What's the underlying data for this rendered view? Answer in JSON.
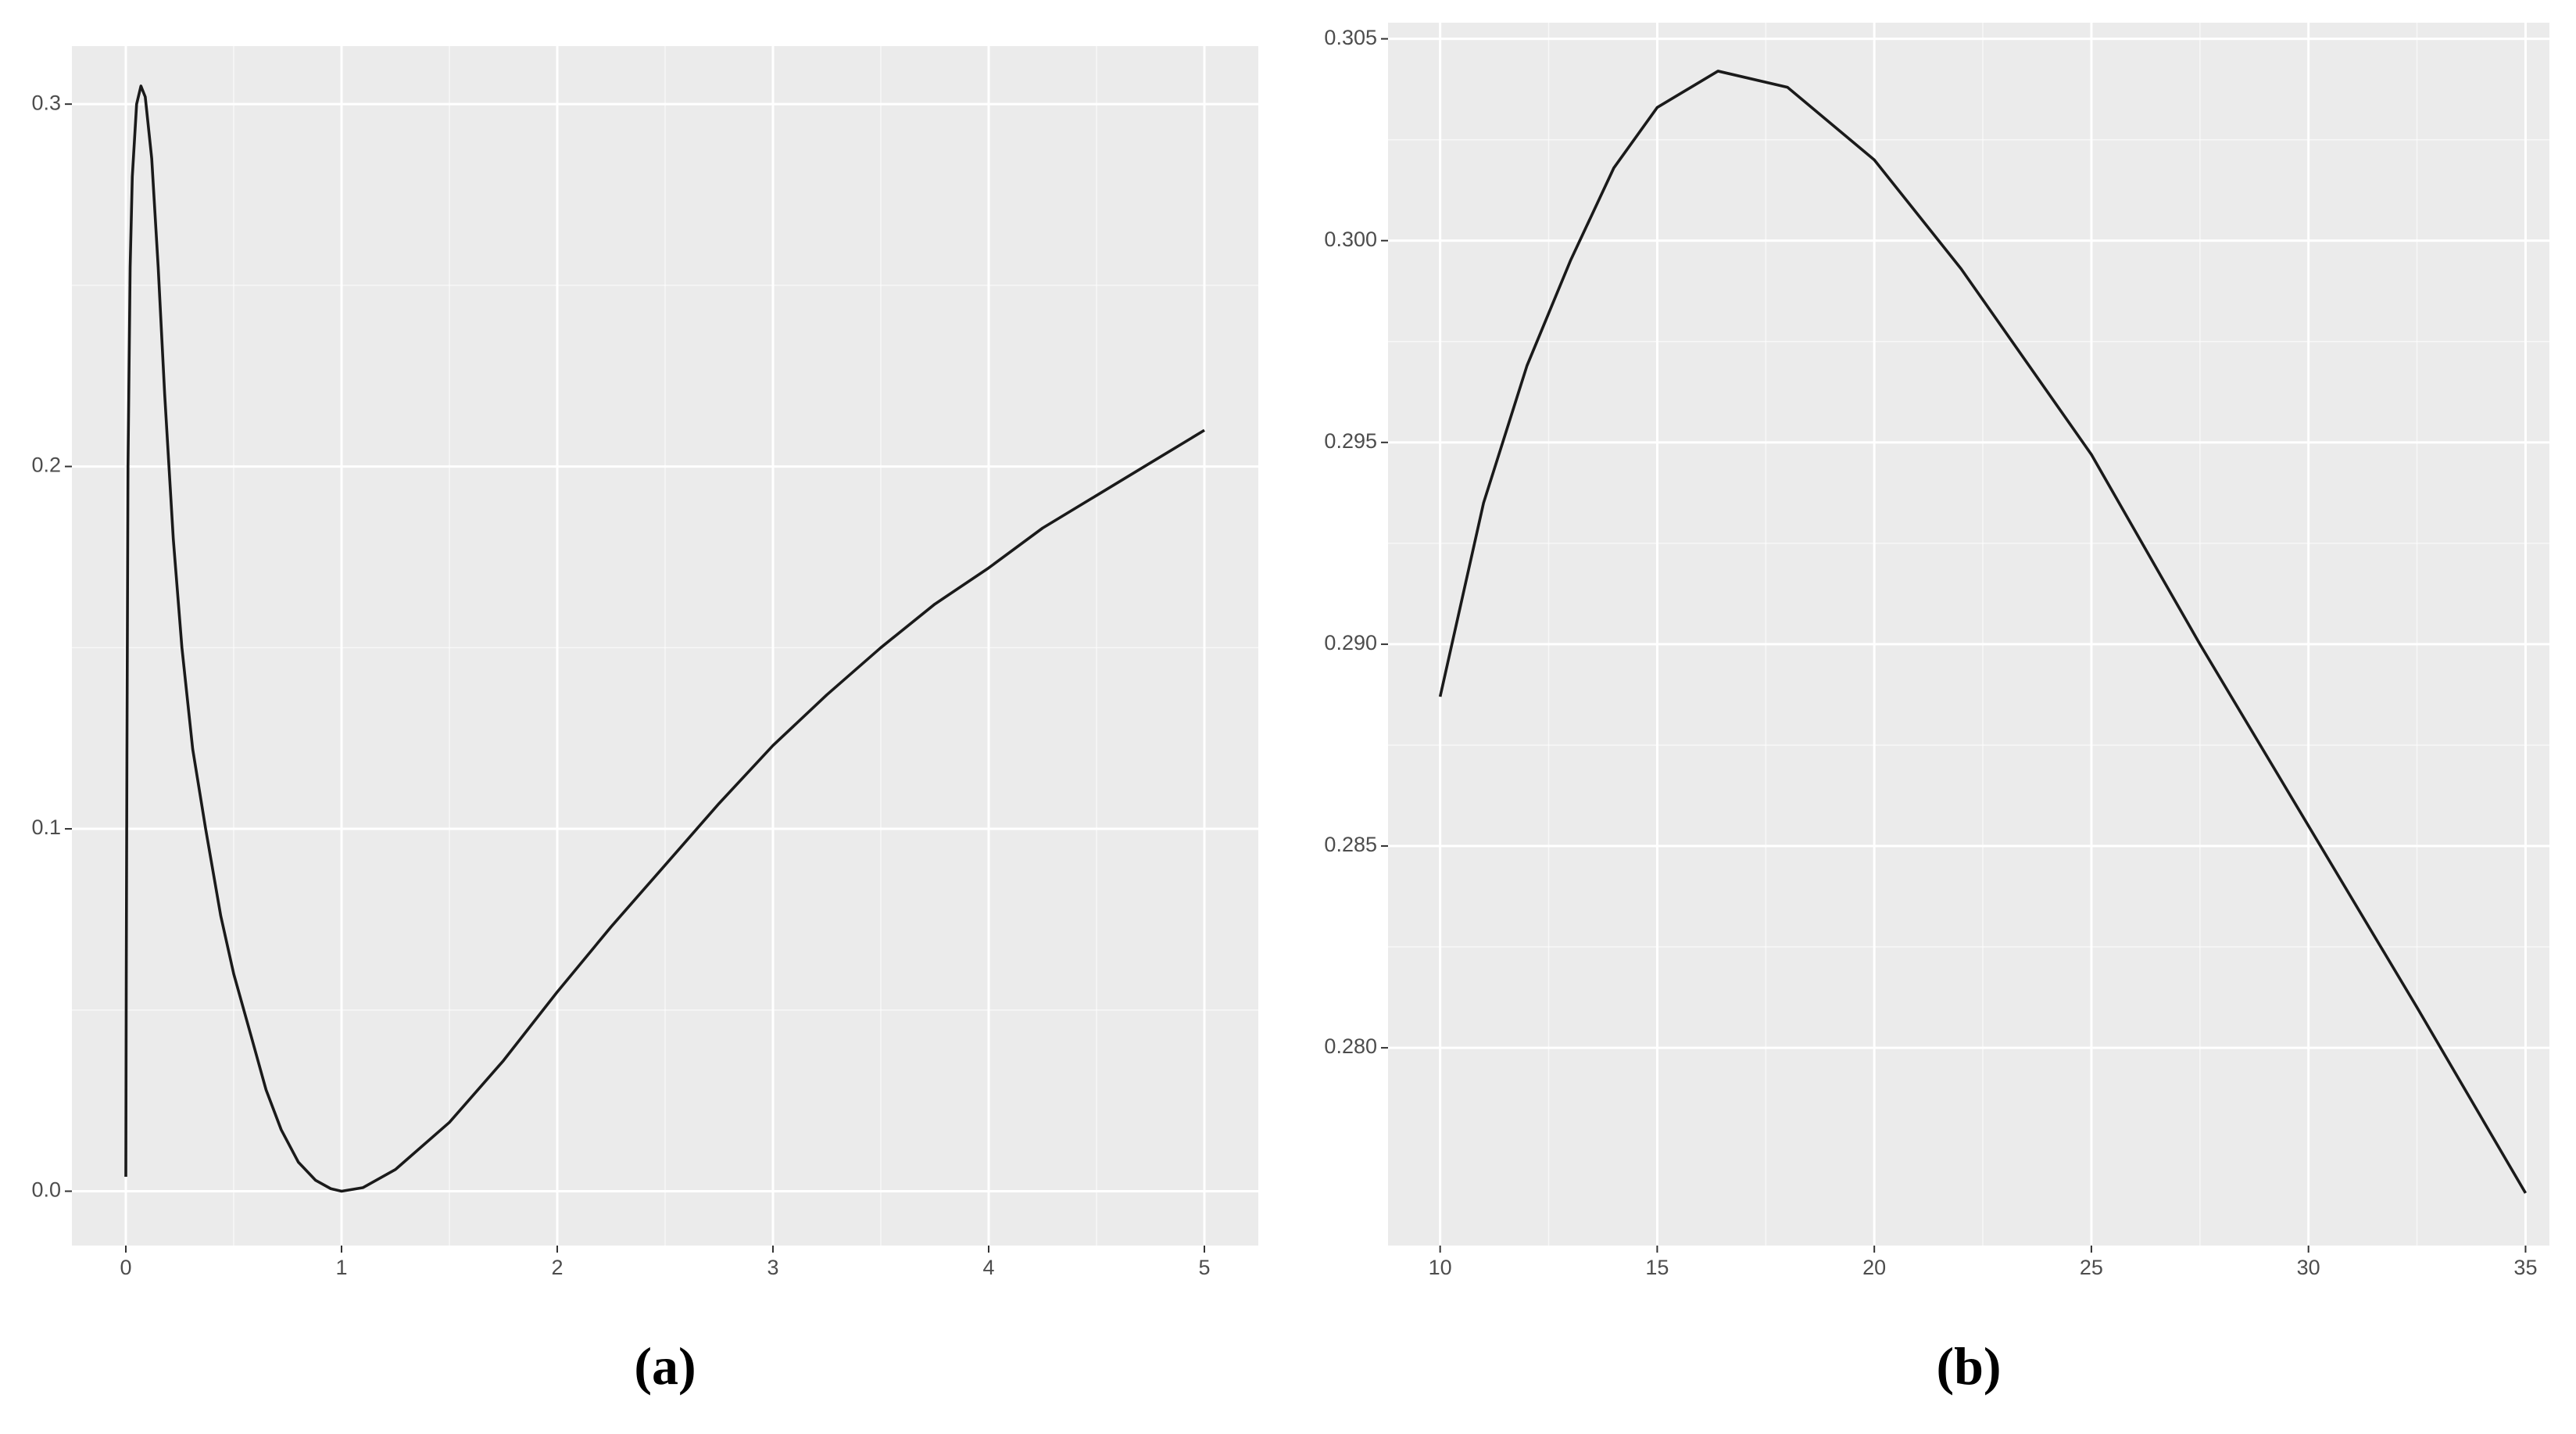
{
  "chart_data": [
    {
      "type": "line",
      "caption": "(a)",
      "x": [
        0,
        0.002,
        0.005,
        0.01,
        0.02,
        0.03,
        0.05,
        0.07,
        0.09,
        0.12,
        0.15,
        0.18,
        0.22,
        0.26,
        0.31,
        0.37,
        0.44,
        0.5,
        0.58,
        0.65,
        0.72,
        0.8,
        0.88,
        0.95,
        1,
        1.1,
        1.25,
        1.5,
        1.75,
        2,
        2.25,
        2.5,
        2.75,
        3,
        3.25,
        3.5,
        3.75,
        4,
        4.25,
        4.5,
        4.75,
        5
      ],
      "values": [
        0.004,
        0.06,
        0.12,
        0.2,
        0.255,
        0.28,
        0.3,
        0.305,
        0.302,
        0.285,
        0.255,
        0.22,
        0.18,
        0.15,
        0.122,
        0.1,
        0.076,
        0.06,
        0.043,
        0.028,
        0.017,
        0.008,
        0.003,
        0.0007,
        0,
        0.001,
        0.006,
        0.019,
        0.036,
        0.055,
        0.073,
        0.09,
        0.107,
        0.123,
        0.137,
        0.15,
        0.162,
        0.172,
        0.183,
        0.192,
        0.201,
        0.21
      ],
      "color": "#1a1a1a",
      "xlim": [
        -0.25,
        5.25
      ],
      "ylim": [
        -0.015,
        0.316
      ],
      "xticks": [
        0,
        1,
        2,
        3,
        4,
        5
      ],
      "yticks": [
        {
          "value": 0,
          "label": "0.0"
        },
        0.1,
        0.2,
        0.3
      ],
      "grid": true
    },
    {
      "type": "line",
      "caption": "(b)",
      "x": [
        10,
        11,
        12,
        13,
        14,
        15,
        16.4,
        18,
        20,
        22,
        25,
        27.5,
        30,
        32.5,
        35
      ],
      "values": [
        0.2887,
        0.2935,
        0.2969,
        0.2995,
        0.3018,
        0.3033,
        0.3042,
        0.3038,
        0.302,
        0.2993,
        0.2947,
        0.29,
        0.2855,
        0.281,
        0.2764
      ],
      "color": "#1a1a1a",
      "xlim": [
        8.8,
        35.55
      ],
      "ylim": [
        0.2751,
        0.3054
      ],
      "xticks": [
        10,
        15,
        20,
        25,
        30,
        35
      ],
      "yticks": [
        {
          "value": 0.28,
          "label": "0.280"
        },
        0.285,
        {
          "value": 0.29,
          "label": "0.290"
        },
        0.295,
        {
          "value": 0.3,
          "label": "0.300"
        },
        0.305
      ],
      "grid": true
    }
  ]
}
